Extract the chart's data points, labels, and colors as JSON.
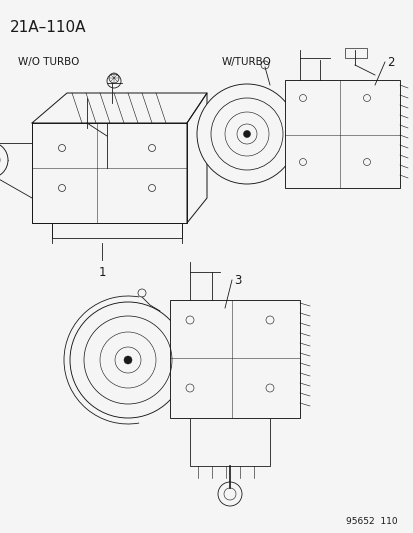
{
  "title": "21A–110A",
  "bg_color": "#f5f5f5",
  "text_color": "#1a1a1a",
  "label_wo_turbo": "W/O TURBO",
  "label_w_turbo": "W/TURBO",
  "num1": "1",
  "num2": "2",
  "num3": "3",
  "diagram_number": "95652  110",
  "lc": "#1a1a1a",
  "lw": 0.6,
  "title_font": 11,
  "label_font": 7.5,
  "num_font": 8.5
}
